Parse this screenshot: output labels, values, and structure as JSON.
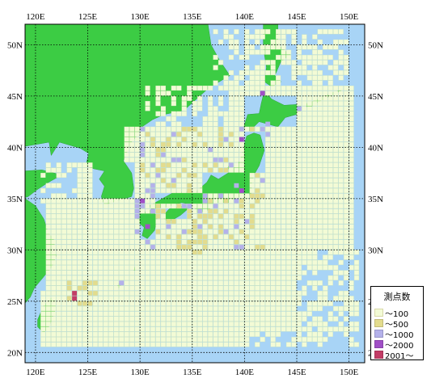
{
  "map": {
    "lon_range": [
      119,
      151.5
    ],
    "lat_range": [
      19,
      52
    ],
    "lon_ticks": [
      120,
      125,
      130,
      135,
      140,
      145,
      150
    ],
    "lat_ticks": [
      20,
      25,
      30,
      35,
      40,
      45,
      50
    ],
    "top_labels": [
      "120E",
      "125E",
      "130E",
      "135E",
      "140E",
      "145E",
      "150E"
    ],
    "bottom_labels": [
      "120E",
      "125E",
      "130E",
      "135E",
      "140E",
      "145E",
      "150E"
    ],
    "left_labels": [
      "50N",
      "45N",
      "40N",
      "35N",
      "30N",
      "25N",
      "20N"
    ],
    "right_labels": [
      "50N",
      "45N",
      "40N",
      "35N",
      "30N",
      "25N",
      "20N"
    ],
    "grid": true,
    "colors": {
      "sea": "#a8d4f6",
      "land": "#3ccc44",
      "ocean_frame": "#000000"
    }
  },
  "legend": {
    "title": "測点数",
    "items": [
      {
        "label": "～100",
        "color": "#f3fbd6"
      },
      {
        "label": "～500",
        "color": "#e3dc8e"
      },
      {
        "label": "～1000",
        "color": "#b4b1ea"
      },
      {
        "label": "～2000",
        "color": "#a04fc6"
      },
      {
        "label": "2001～",
        "color": "#c23c66"
      }
    ]
  }
}
